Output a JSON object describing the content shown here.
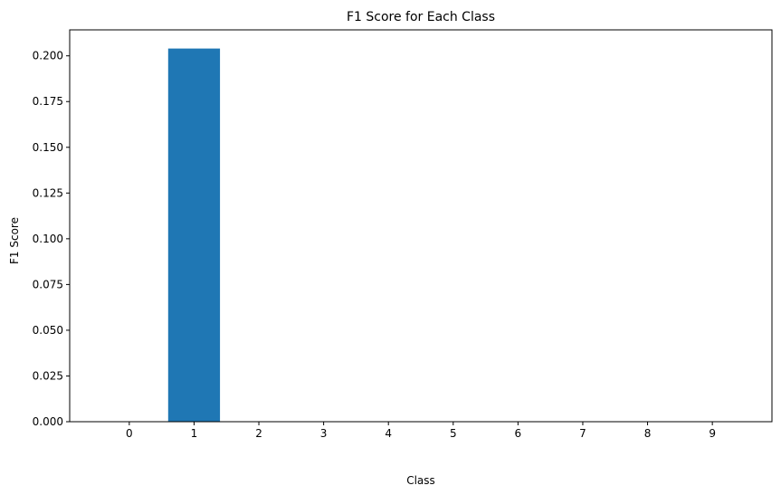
{
  "chart_data": {
    "type": "bar",
    "title": "F1 Score for Each Class",
    "xlabel": "Class",
    "ylabel": "F1 Score",
    "categories": [
      "0",
      "1",
      "2",
      "3",
      "4",
      "5",
      "6",
      "7",
      "8",
      "9"
    ],
    "values": [
      0.0,
      0.204,
      0.0,
      0.0,
      0.0,
      0.0,
      0.0,
      0.0,
      0.0,
      0.0
    ],
    "ylim": [
      0,
      0.2142
    ],
    "yticks": [
      "0.000",
      "0.025",
      "0.050",
      "0.075",
      "0.100",
      "0.125",
      "0.150",
      "0.175",
      "0.200"
    ],
    "bar_color": "#1f77b4",
    "grid": false,
    "legend": "none"
  }
}
